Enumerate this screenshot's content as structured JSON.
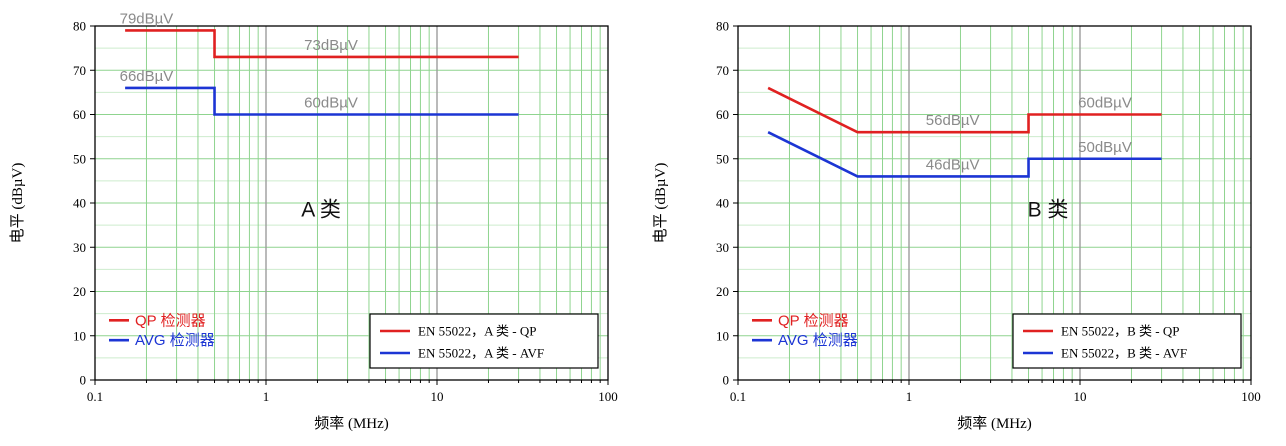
{
  "page": {
    "background": "#ffffff"
  },
  "chart_data": [
    {
      "type": "line",
      "title": "A 类",
      "title_pos": [
        2.1,
        37
      ],
      "xlabel": "频率 (MHz)",
      "ylabel": "电平 (dBµV)",
      "xscale": "log",
      "xlim": [
        0.1,
        100
      ],
      "ylim": [
        0,
        80
      ],
      "xticks": [
        "0.1",
        "1",
        "10",
        "100"
      ],
      "yticks": [
        0,
        10,
        20,
        30,
        40,
        50,
        60,
        70,
        80
      ],
      "grid": {
        "minor_color": "#cdeccd",
        "major_color": "#8fd48f",
        "decade_color": "#9c9c9c",
        "on": true
      },
      "series": [
        {
          "name": "EN 55022，A 类 - QP",
          "color": "#e02121",
          "points": [
            [
              0.15,
              79
            ],
            [
              0.5,
              79
            ],
            [
              0.5,
              73
            ],
            [
              30,
              73
            ]
          ]
        },
        {
          "name": "EN 55022，A 类 - AVF",
          "color": "#1c35d4",
          "points": [
            [
              0.15,
              66
            ],
            [
              0.5,
              66
            ],
            [
              0.5,
              60
            ],
            [
              30,
              60
            ]
          ]
        }
      ],
      "annotations": [
        {
          "text": "79dBµV",
          "x": 0.2,
          "y": 79
        },
        {
          "text": "73dBµV",
          "x": 2.4,
          "y": 73
        },
        {
          "text": "66dBµV",
          "x": 0.2,
          "y": 66
        },
        {
          "text": "60dBµV",
          "x": 2.4,
          "y": 60
        }
      ],
      "inner_legend": [
        {
          "label": "QP 检测器",
          "color": "#e02121",
          "y": 13.5
        },
        {
          "label": "AVG 检测器",
          "color": "#1c35d4",
          "y": 9
        }
      ],
      "legend_box": [
        "EN 55022，A 类 - QP",
        "EN 55022，A 类 - AVF"
      ]
    },
    {
      "type": "line",
      "title": "B 类",
      "title_pos": [
        6.5,
        37
      ],
      "xlabel": "频率 (MHz)",
      "ylabel": "电平 (dBµV)",
      "xscale": "log",
      "xlim": [
        0.1,
        100
      ],
      "ylim": [
        0,
        80
      ],
      "xticks": [
        "0.1",
        "1",
        "10",
        "100"
      ],
      "yticks": [
        0,
        10,
        20,
        30,
        40,
        50,
        60,
        70,
        80
      ],
      "grid": {
        "minor_color": "#cdeccd",
        "major_color": "#8fd48f",
        "decade_color": "#9c9c9c",
        "on": true
      },
      "series": [
        {
          "name": "EN 55022，B 类 - QP",
          "color": "#e02121",
          "points": [
            [
              0.15,
              66
            ],
            [
              0.5,
              56
            ],
            [
              5,
              56
            ],
            [
              5,
              60
            ],
            [
              30,
              60
            ]
          ]
        },
        {
          "name": "EN 55022，B 类 - AVF",
          "color": "#1c35d4",
          "points": [
            [
              0.15,
              56
            ],
            [
              0.5,
              46
            ],
            [
              5,
              46
            ],
            [
              5,
              50
            ],
            [
              30,
              50
            ]
          ]
        }
      ],
      "annotations": [
        {
          "text": "56dBµV",
          "x": 1.8,
          "y": 56
        },
        {
          "text": "60dBµV",
          "x": 14,
          "y": 60
        },
        {
          "text": "46dBµV",
          "x": 1.8,
          "y": 46
        },
        {
          "text": "50dBµV",
          "x": 14,
          "y": 50
        }
      ],
      "inner_legend": [
        {
          "label": "QP 检测器",
          "color": "#e02121",
          "y": 13.5
        },
        {
          "label": "AVG 检测器",
          "color": "#1c35d4",
          "y": 9
        }
      ],
      "legend_box": [
        "EN 55022，B 类 - QP",
        "EN 55022，B 类 - AVF"
      ]
    }
  ]
}
